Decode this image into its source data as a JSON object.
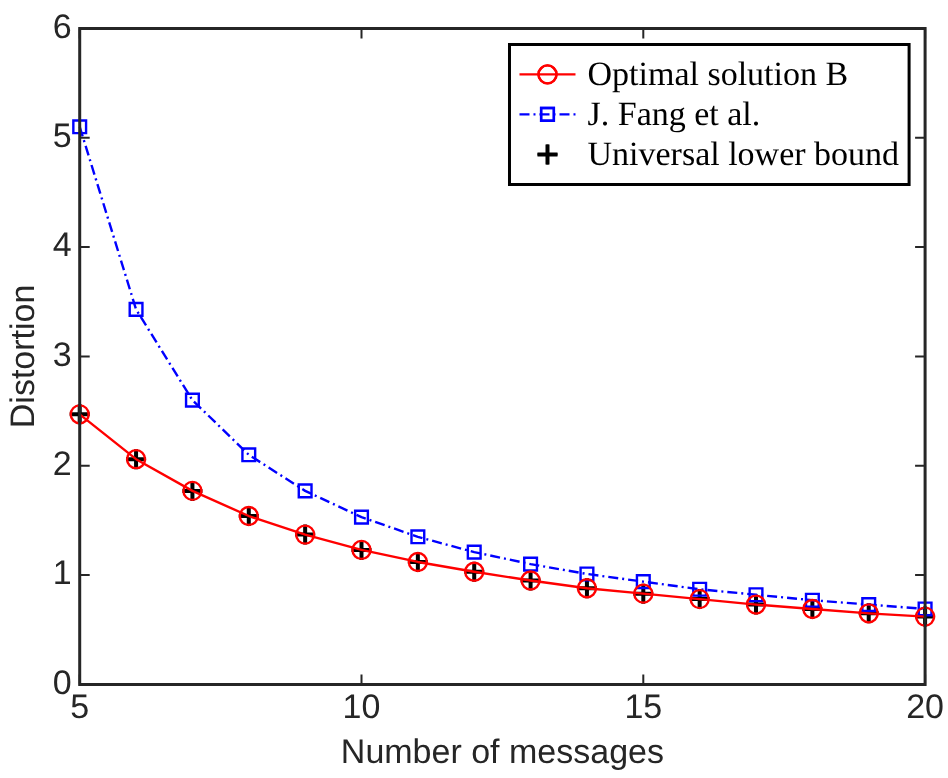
{
  "chart_data": {
    "type": "line",
    "xlabel": "Number of messages",
    "ylabel": "Distortion",
    "x": [
      5,
      6,
      7,
      8,
      9,
      10,
      11,
      12,
      13,
      14,
      15,
      16,
      17,
      18,
      19,
      20
    ],
    "xlim": [
      5,
      20
    ],
    "xticks": [
      5,
      10,
      15,
      20
    ],
    "ylim": [
      0,
      6
    ],
    "yticks": [
      0,
      1,
      2,
      3,
      4,
      5,
      6
    ],
    "grid": false,
    "legend": "top right",
    "series": [
      {
        "name": "Optimal solution B",
        "color": "#ff0000",
        "marker": "circle",
        "line_style": "solid",
        "values": [
          2.47,
          2.06,
          1.77,
          1.54,
          1.37,
          1.23,
          1.12,
          1.03,
          0.95,
          0.88,
          0.83,
          0.78,
          0.73,
          0.69,
          0.65,
          0.62
        ]
      },
      {
        "name": "J. Fang et al.",
        "color": "#0000ff",
        "marker": "square",
        "line_style": "dashdot",
        "values": [
          5.1,
          3.43,
          2.6,
          2.1,
          1.77,
          1.53,
          1.35,
          1.21,
          1.1,
          1.01,
          0.94,
          0.87,
          0.82,
          0.77,
          0.73,
          0.69
        ]
      },
      {
        "name": "Universal lower bound",
        "type": "scatter",
        "color": "#000000",
        "marker": "cross",
        "values": [
          2.47,
          2.06,
          1.77,
          1.54,
          1.37,
          1.23,
          1.12,
          1.03,
          0.95,
          0.88,
          0.83,
          0.78,
          0.73,
          0.69,
          0.65,
          0.62
        ]
      }
    ]
  }
}
